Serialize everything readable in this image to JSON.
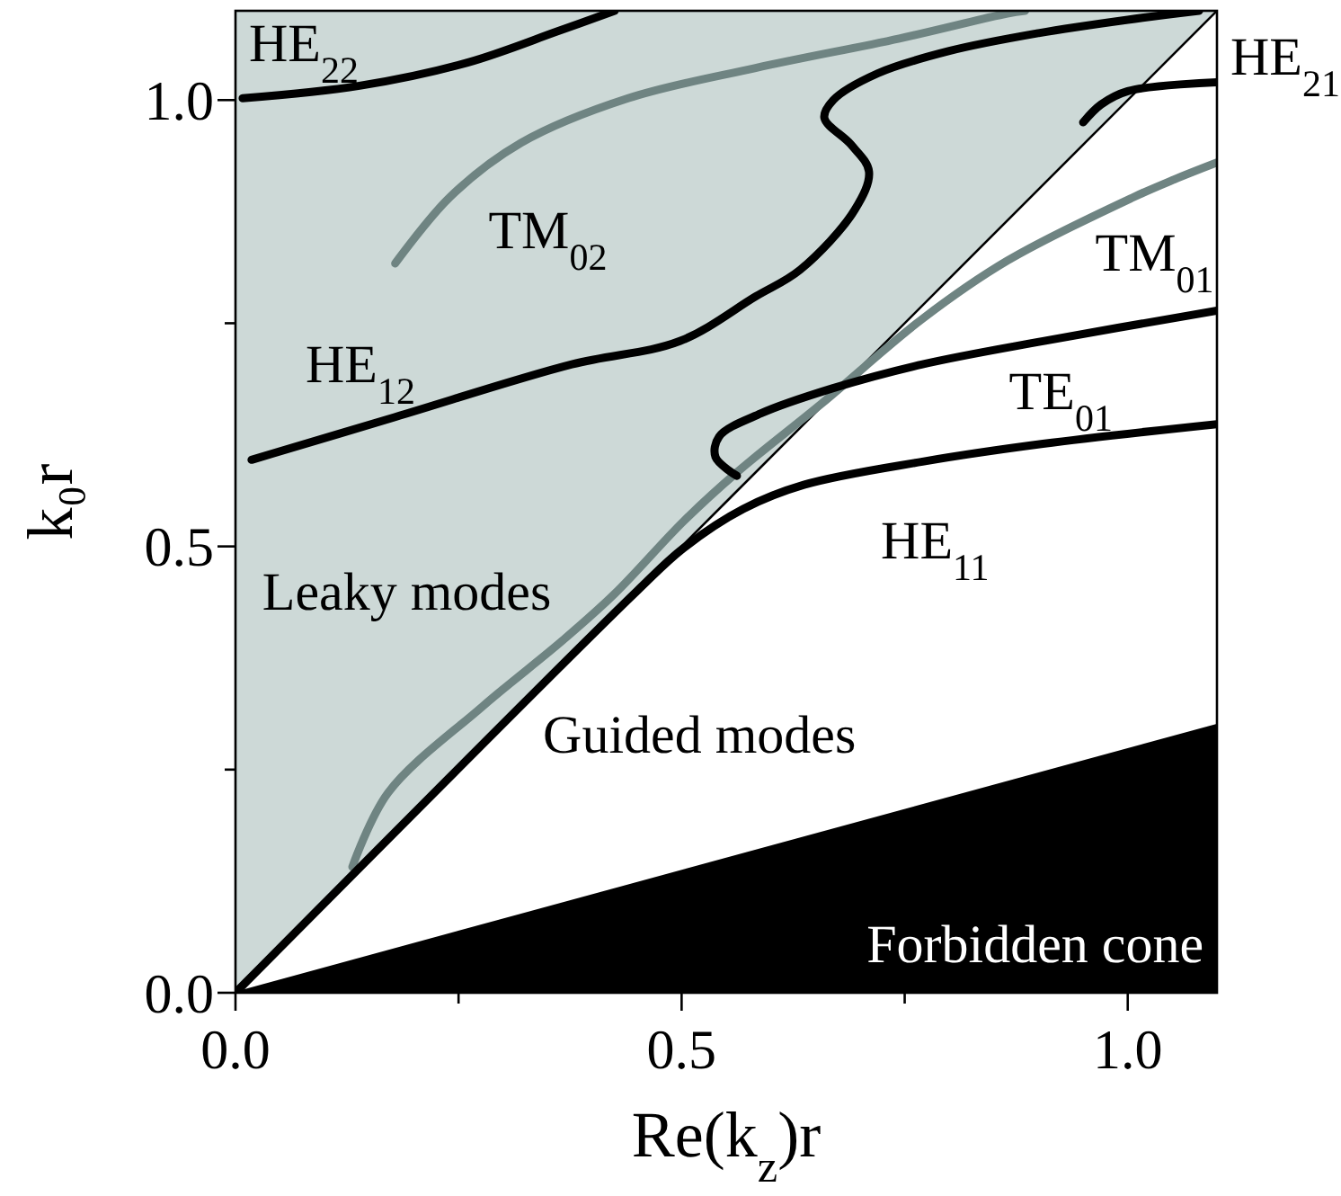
{
  "chart_data": {
    "type": "line",
    "xlabel": "Re(k$_{z}$)r",
    "ylabel": "k₀r",
    "xlim": [
      0,
      1.1
    ],
    "ylim": [
      0,
      1.1
    ],
    "xticks": [
      {
        "value": 0,
        "label": "0.0"
      },
      {
        "value": 0.25,
        "label": null
      },
      {
        "value": 0.5,
        "label": "0.5"
      },
      {
        "value": 0.75,
        "label": null
      },
      {
        "value": 1,
        "label": "1.0"
      }
    ],
    "yticks": [
      {
        "value": 0,
        "label": "0.0"
      },
      {
        "value": 0.25,
        "label": null
      },
      {
        "value": 0.5,
        "label": "0.5"
      },
      {
        "value": 0.75,
        "label": null
      },
      {
        "value": 1,
        "label": "1.0"
      }
    ],
    "grid": false,
    "legend": false,
    "series": [
      {
        "type": "area",
        "color": "#ffffff",
        "x": [
          0,
          0.55,
          1.1
        ],
        "values": [
          0,
          0.55,
          1.1
        ]
      },
      {
        "type": "area",
        "color": "#000000",
        "x": [
          0,
          1.1
        ],
        "values": [
          0,
          0.3
        ]
      },
      {
        "name": "HE$_{22}$",
        "color": "#000000",
        "x": [
          0.008,
          0.139,
          0.26,
          0.361,
          0.425
        ],
        "values": [
          1.002,
          1.016,
          1.042,
          1.077,
          1.1
        ]
      },
      {
        "name": "TM$_{02}$",
        "color": "#6f8482",
        "x": [
          0.179,
          0.24,
          0.32,
          0.44,
          0.583,
          0.744,
          0.865,
          0.885
        ],
        "values": [
          0.817,
          0.891,
          0.952,
          1.002,
          1.036,
          1.069,
          1.097,
          1.1
        ]
      },
      {
        "name": "HE$_{12}$",
        "color": "#000000",
        "x": [
          0.018,
          0.179,
          0.377,
          0.498,
          0.583,
          0.633,
          0.694,
          0.71,
          0.69,
          0.66,
          0.67,
          0.72,
          0.8,
          0.9,
          1.0,
          1.08
        ],
        "values": [
          0.597,
          0.645,
          0.704,
          0.73,
          0.78,
          0.81,
          0.877,
          0.92,
          0.95,
          0.98,
          1.0,
          1.03,
          1.055,
          1.075,
          1.09,
          1.1
        ]
      },
      {
        "name": "HE$_{21}$",
        "color": "#000000",
        "x": [
          0.95,
          0.97,
          1.0,
          1.1
        ],
        "values": [
          0.975,
          0.995,
          1.01,
          1.02
        ]
      },
      {
        "name": "TM$_{01}$",
        "color": "#6f8482",
        "x": [
          0.131,
          0.171,
          0.276,
          0.367,
          0.425,
          0.502,
          0.562,
          0.657,
          0.77,
          0.865,
          1.006,
          1.052,
          1.1
        ],
        "values": [
          0.141,
          0.224,
          0.32,
          0.395,
          0.447,
          0.528,
          0.583,
          0.66,
          0.755,
          0.82,
          0.891,
          0.911,
          0.93
        ]
      },
      {
        "name": "TE$_{01}$",
        "color": "#000000",
        "x": [
          0.562,
          0.538,
          0.542,
          0.589,
          0.669,
          0.77,
          0.905,
          1.1
        ],
        "values": [
          0.579,
          0.6,
          0.623,
          0.649,
          0.677,
          0.704,
          0.73,
          0.764
        ]
      },
      {
        "name": "HE$_{11}$",
        "color": "#000000",
        "x": [
          0,
          0.45,
          0.502,
          0.569,
          0.637,
          0.77,
          0.905,
          1.1
        ],
        "values": [
          0,
          0.45,
          0.498,
          0.542,
          0.569,
          0.595,
          0.615,
          0.637
        ]
      }
    ],
    "annotations": [
      "Leaky modes",
      "Guided modes",
      "Forbidden cone"
    ]
  }
}
